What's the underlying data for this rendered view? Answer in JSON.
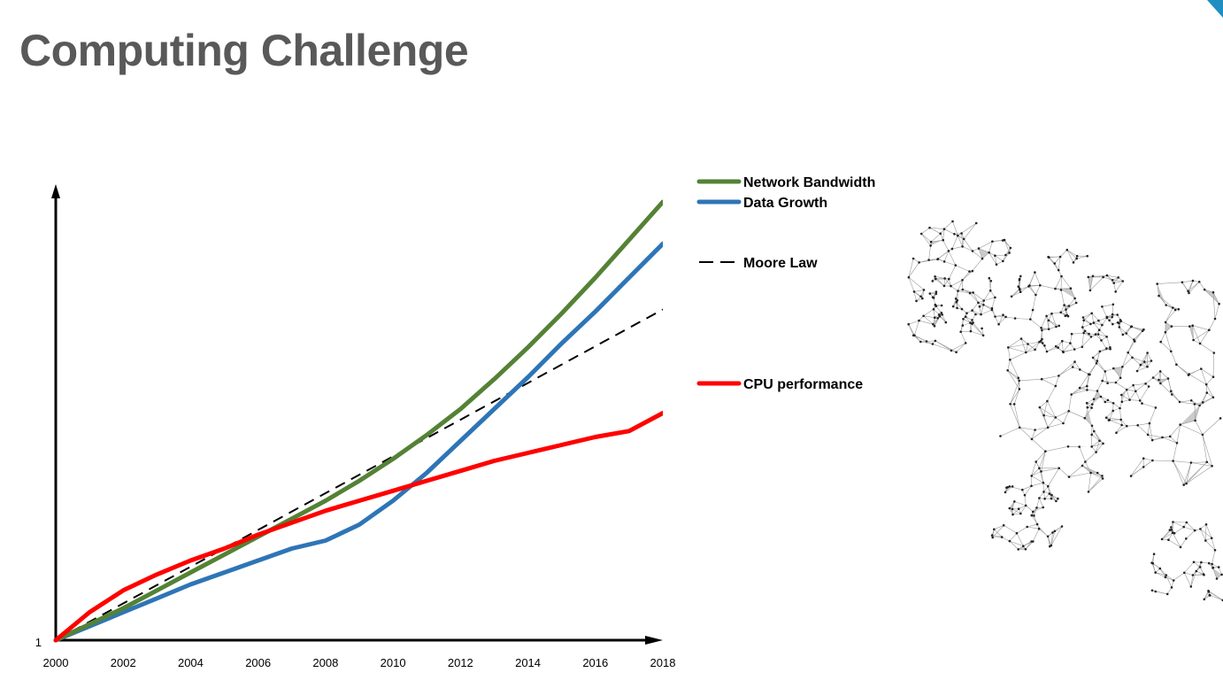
{
  "slide": {
    "title": "Computing Challenge"
  },
  "chart_data": {
    "type": "line",
    "title": "",
    "xlabel": "",
    "ylabel": "",
    "x_ticks": [
      "2000",
      "2002",
      "2004",
      "2006",
      "2008",
      "2010",
      "2012",
      "2014",
      "2016",
      "2018"
    ],
    "y_ticks": [
      "1"
    ],
    "xlim": [
      2000,
      2018
    ],
    "ylim": [
      0,
      100
    ],
    "grid": false,
    "legend_position": "right",
    "series": [
      {
        "name": "Network Bandwidth",
        "color": "#548235",
        "style": "solid",
        "x": [
          2000,
          2001,
          2002,
          2003,
          2004,
          2005,
          2006,
          2007,
          2008,
          2009,
          2010,
          2011,
          2012,
          2013,
          2014,
          2015,
          2016,
          2017,
          2018
        ],
        "y": [
          0,
          4,
          8,
          12.5,
          17,
          21.5,
          26,
          30.5,
          35,
          40,
          45.5,
          51.5,
          58,
          65.5,
          73.5,
          82,
          91,
          100.5,
          110
        ]
      },
      {
        "name": "Data Growth",
        "color": "#2e75b6",
        "style": "solid",
        "x": [
          2000,
          2001,
          2002,
          2003,
          2004,
          2005,
          2006,
          2007,
          2008,
          2009,
          2010,
          2011,
          2012,
          2013,
          2014,
          2015,
          2016,
          2017,
          2018
        ],
        "y": [
          0,
          3.5,
          7,
          10.5,
          14,
          17,
          20,
          23,
          25,
          29,
          35,
          42,
          50,
          58,
          66,
          74.5,
          82.5,
          91,
          99.5
        ]
      },
      {
        "name": "Moore Law",
        "color": "#000000",
        "style": "dashed",
        "x": [
          2000,
          2018
        ],
        "y": [
          0,
          83
        ]
      },
      {
        "name": "CPU performance",
        "color": "#ff0000",
        "style": "solid",
        "x": [
          2000,
          2001,
          2002,
          2003,
          2004,
          2005,
          2006,
          2007,
          2008,
          2009,
          2010,
          2011,
          2012,
          2013,
          2014,
          2015,
          2016,
          2017,
          2018
        ],
        "y": [
          0,
          7,
          12.5,
          16.5,
          20,
          23,
          26.5,
          29.5,
          32.5,
          35,
          37.5,
          40,
          42.5,
          45,
          47,
          49,
          51,
          52.5,
          57
        ]
      }
    ]
  }
}
